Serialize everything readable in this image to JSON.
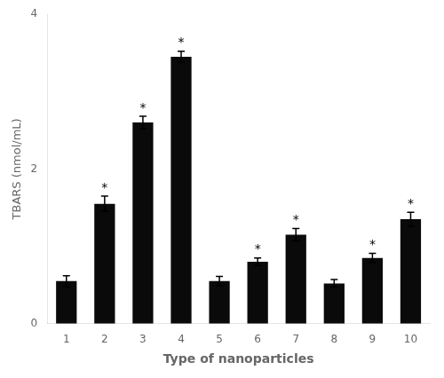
{
  "chart_data": {
    "type": "bar",
    "categories": [
      "1",
      "2",
      "3",
      "4",
      "5",
      "6",
      "7",
      "8",
      "9",
      "10"
    ],
    "values": [
      0.55,
      1.55,
      2.6,
      3.45,
      0.55,
      0.8,
      1.15,
      0.52,
      0.85,
      1.35
    ],
    "errors": [
      0.07,
      0.1,
      0.08,
      0.07,
      0.06,
      0.05,
      0.08,
      0.05,
      0.06,
      0.09
    ],
    "color": "#0a0a0a",
    "xlabel": "Type of nanoparticles",
    "ylabel": "TBARS (nmol/mL)",
    "ylim": [
      0,
      4
    ],
    "yticks": [
      0,
      2,
      4
    ],
    "grid": false,
    "annotations": [
      {
        "x": "2",
        "text": "*"
      },
      {
        "x": "3",
        "text": "*"
      },
      {
        "x": "4",
        "text": "*"
      },
      {
        "x": "6",
        "text": "*"
      },
      {
        "x": "7",
        "text": "*"
      },
      {
        "x": "9",
        "text": "*"
      },
      {
        "x": "10",
        "text": "*"
      }
    ]
  }
}
